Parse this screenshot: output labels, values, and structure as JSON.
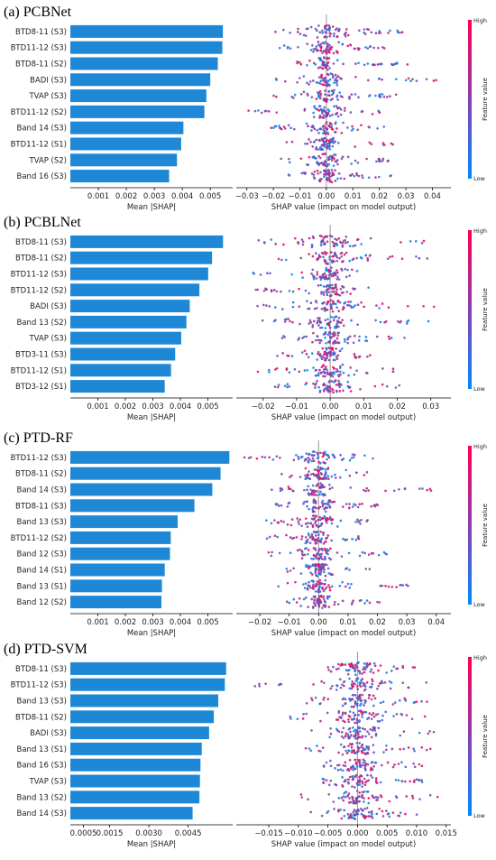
{
  "colors": {
    "bar": "#1e88d6",
    "low": "#008afb",
    "high": "#ff0052",
    "zero": "#999999"
  },
  "colorbar": {
    "high": "High",
    "low": "Low",
    "label": "Feature value"
  },
  "chart_data": [
    {
      "type": "bar",
      "title": "(a) PCBNet",
      "categories": [
        "BTD8-11 (S3)",
        "BTD11-12 (S3)",
        "BTD8-11 (S2)",
        "BADI (S3)",
        "TVAP (S3)",
        "BTD11-12 (S2)",
        "Band 14 (S3)",
        "BTD11-12 (S1)",
        "TVAP (S2)",
        "Band 16 (S3)"
      ],
      "values": [
        0.00545,
        0.00543,
        0.00527,
        0.005,
        0.00486,
        0.00479,
        0.00404,
        0.00396,
        0.00381,
        0.00353
      ],
      "xlabel": "Mean |SHAP|",
      "xlim": [
        0,
        0.0058
      ],
      "xticks": [
        0.001,
        0.002,
        0.003,
        0.004,
        0.005
      ],
      "xtick_labels": [
        "0.001",
        "0.002",
        "0.003",
        "0.004",
        "0.005"
      ],
      "shap": {
        "xlabel": "SHAP value (impact on model output)",
        "xlim": [
          -0.034,
          0.047
        ],
        "xticks": [
          -0.03,
          -0.02,
          -0.01,
          0.0,
          0.01,
          0.02,
          0.03,
          0.04
        ],
        "xtick_labels": [
          "−0.03",
          "−0.02",
          "−0.01",
          "0.00",
          "0.01",
          "0.02",
          "0.03",
          "0.04"
        ],
        "min": [
          -0.02,
          -0.018,
          -0.011,
          -0.02,
          -0.02,
          -0.031,
          -0.021,
          -0.015,
          -0.018,
          -0.015
        ],
        "max": [
          0.029,
          0.022,
          0.032,
          0.044,
          0.027,
          0.024,
          0.022,
          0.026,
          0.024,
          0.027
        ]
      }
    },
    {
      "type": "bar",
      "title": "(b) PCBLNet",
      "categories": [
        "BTD8-11 (S3)",
        "BTD8-11 (S2)",
        "BTD11-12 (S3)",
        "BTD11-12 (S2)",
        "BADI (S3)",
        "Band 13 (S2)",
        "TVAP (S3)",
        "BTD3-11 (S3)",
        "BTD11-12 (S1)",
        "BTD3-12 (S1)"
      ],
      "values": [
        0.00555,
        0.00515,
        0.00501,
        0.00469,
        0.00434,
        0.00422,
        0.00403,
        0.00381,
        0.00366,
        0.00343
      ],
      "xlabel": "Mean |SHAP|",
      "xlim": [
        0,
        0.0059
      ],
      "xticks": [
        0.001,
        0.002,
        0.003,
        0.004,
        0.005
      ],
      "xtick_labels": [
        "0.001",
        "0.002",
        "0.003",
        "0.004",
        "0.005"
      ],
      "shap": {
        "xlabel": "SHAP value (impact on model output)",
        "xlim": [
          -0.028,
          0.036
        ],
        "xticks": [
          -0.02,
          -0.01,
          0.0,
          0.01,
          0.02,
          0.03
        ],
        "xtick_labels": [
          "−0.02",
          "−0.01",
          "0.00",
          "0.01",
          "0.02",
          "0.03"
        ],
        "min": [
          -0.022,
          -0.016,
          -0.023,
          -0.023,
          -0.025,
          -0.021,
          -0.017,
          -0.017,
          -0.022,
          -0.017
        ],
        "max": [
          0.028,
          0.029,
          0.014,
          0.013,
          0.033,
          0.03,
          0.024,
          0.014,
          0.019,
          0.021
        ]
      }
    },
    {
      "type": "bar",
      "title": "(c) PTD-RF",
      "categories": [
        "BTD11-12 (S3)",
        "BTD8-11 (S2)",
        "Band 14 (S3)",
        "BTD8-11 (S3)",
        "Band 13 (S3)",
        "BTD11-12 (S2)",
        "Band 12 (S3)",
        "Band 14 (S1)",
        "Band 13 (S1)",
        "Band 12 (S2)"
      ],
      "values": [
        0.00578,
        0.00546,
        0.00516,
        0.00451,
        0.0039,
        0.00365,
        0.00362,
        0.00343,
        0.00333,
        0.00331
      ],
      "xlabel": "Mean |SHAP|",
      "xlim": [
        0,
        0.0059
      ],
      "xticks": [
        0.001,
        0.002,
        0.003,
        0.004,
        0.005
      ],
      "xtick_labels": [
        "0.001",
        "0.002",
        "0.003",
        "0.004",
        "0.005"
      ],
      "shap": {
        "xlabel": "SHAP value (impact on model output)",
        "xlim": [
          -0.028,
          0.045
        ],
        "xticks": [
          -0.02,
          -0.01,
          0.0,
          0.01,
          0.02,
          0.03,
          0.04
        ],
        "xtick_labels": [
          "−0.02",
          "−0.01",
          "0.00",
          "0.01",
          "0.02",
          "0.03",
          "0.04"
        ],
        "min": [
          -0.027,
          -0.017,
          -0.016,
          -0.015,
          -0.018,
          -0.019,
          -0.018,
          -0.014,
          -0.014,
          -0.013
        ],
        "max": [
          0.019,
          0.017,
          0.041,
          0.021,
          0.017,
          0.016,
          0.025,
          0.018,
          0.034,
          0.022
        ]
      }
    },
    {
      "type": "bar",
      "title": "(d) PTD-SVM",
      "categories": [
        "BTD8-11 (S3)",
        "BTD11-12 (S3)",
        "Band 13 (S3)",
        "BTD8-11 (S2)",
        "BADI (S3)",
        "Band 13 (S1)",
        "Band 16 (S3)",
        "TVAP (S3)",
        "Band 13 (S2)",
        "Band 14 (S3)"
      ],
      "values": [
        0.00595,
        0.0059,
        0.00565,
        0.00548,
        0.0053,
        0.00502,
        0.00497,
        0.00495,
        0.00493,
        0.00467
      ],
      "xlabel": "Mean |SHAP|",
      "xlim": [
        0,
        0.0062
      ],
      "xticks": [
        0.0005,
        0.0015,
        0.003,
        0.0045
      ],
      "xtick_labels": [
        "0.0005",
        "0.0015",
        "0.0030",
        "0.0045"
      ],
      "shap": {
        "xlabel": "SHAP value (impact on model output)",
        "xlim": [
          -0.0205,
          0.0158
        ],
        "xticks": [
          -0.015,
          -0.01,
          -0.005,
          0.0,
          0.005,
          0.01,
          0.015
        ],
        "xtick_labels": [
          "−0.015",
          "−0.010",
          "−0.005",
          "0.000",
          "0.005",
          "0.010",
          "0.015"
        ],
        "min": [
          -0.008,
          -0.018,
          -0.01,
          -0.012,
          -0.009,
          -0.009,
          -0.008,
          -0.007,
          -0.011,
          -0.008
        ],
        "max": [
          0.012,
          0.013,
          0.012,
          0.012,
          0.014,
          0.013,
          0.012,
          0.012,
          0.014,
          0.011
        ]
      }
    }
  ]
}
